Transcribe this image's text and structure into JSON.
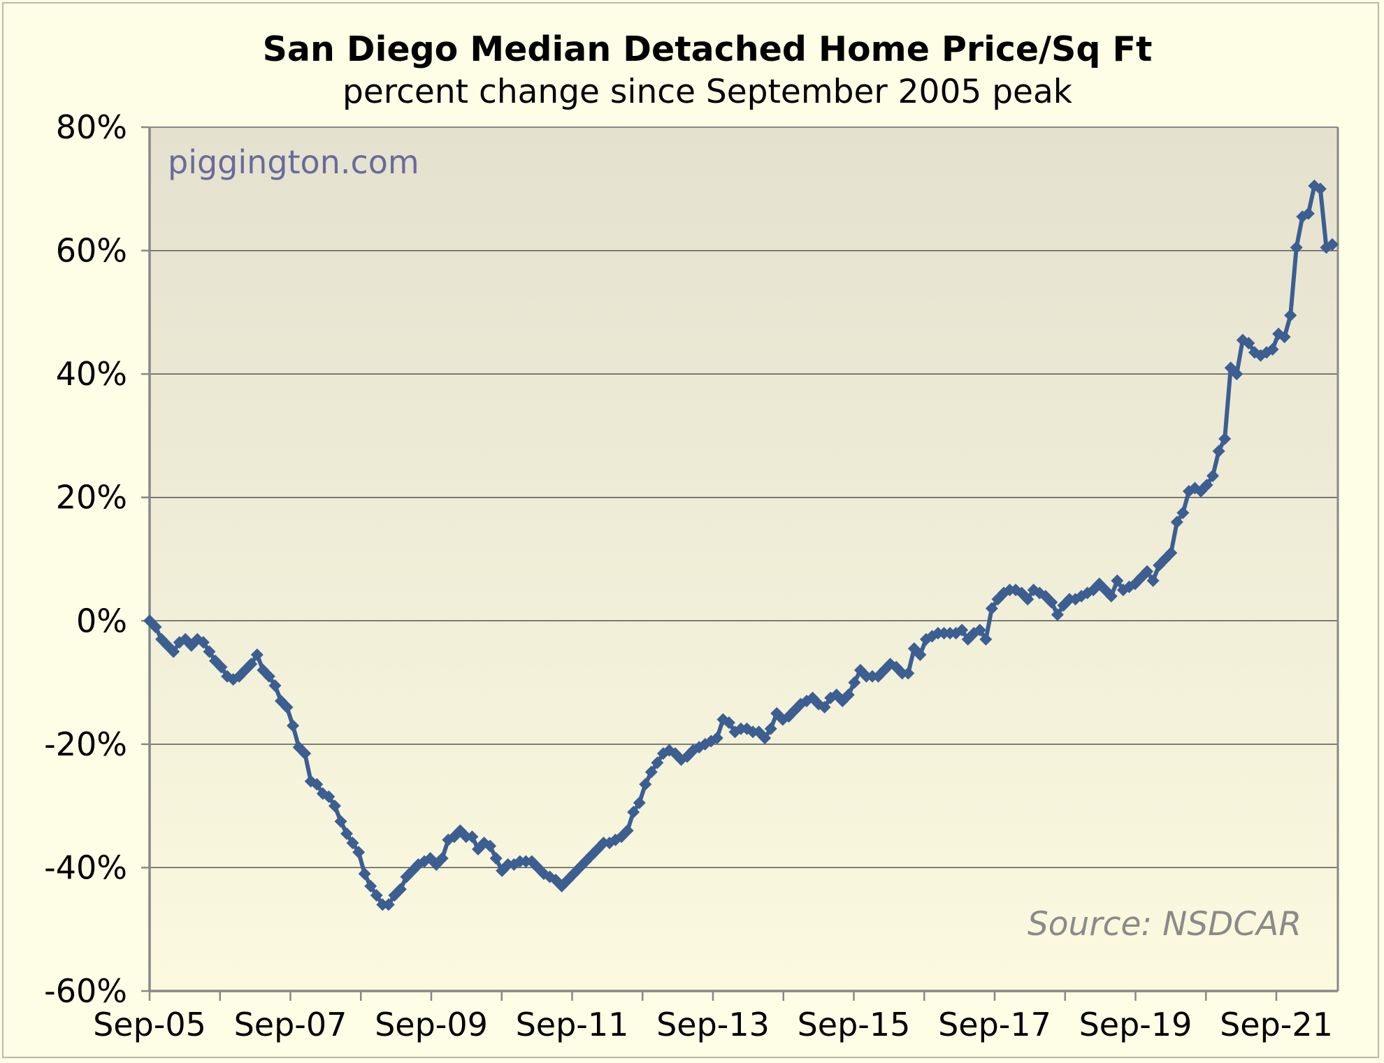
{
  "chart_data": {
    "type": "line",
    "title": "San Diego Median Detached Home Price/Sq Ft",
    "subtitle": "percent change since September 2005 peak",
    "watermark": "piggington.com",
    "source": "Source: NSDCAR",
    "ylim": [
      -60,
      80
    ],
    "yticks": [
      80,
      60,
      40,
      20,
      0,
      -20,
      -40,
      -60
    ],
    "ytick_labels": [
      "80%",
      "60%",
      "40%",
      "20%",
      "0%",
      "-20%",
      "-40%",
      "-60%"
    ],
    "xtick_labels": [
      "Sep-05",
      "Sep-07",
      "Sep-09",
      "Sep-11",
      "Sep-13",
      "Sep-15",
      "Sep-17",
      "Sep-19",
      "Sep-21"
    ],
    "x_first_label": "Sep-05",
    "x_last_point": "May-22",
    "grid": true,
    "colors": {
      "line": "#3c5e91",
      "plot_bg_top": "#e4e1cf",
      "plot_bg_bottom": "#fbfadf",
      "grid": "#555555",
      "axis": "#888888"
    },
    "series": [
      {
        "values": [
          0,
          -1,
          -3,
          -4,
          -5,
          -3.5,
          -3,
          -4,
          -3,
          -3.5,
          -5,
          -6.5,
          -7.5,
          -9,
          -9.5,
          -9,
          -8,
          -7,
          -5.5,
          -8,
          -9,
          -10.5,
          -13,
          -14,
          -17,
          -20.5,
          -21.5,
          -26,
          -26.5,
          -28,
          -28.5,
          -30,
          -32.5,
          -34.5,
          -36,
          -37.5,
          -41,
          -43,
          -44.5,
          -46,
          -46,
          -44.5,
          -43.5,
          -41.5,
          -40.5,
          -39.5,
          -39,
          -38.5,
          -39.5,
          -38.5,
          -35.5,
          -35,
          -34,
          -35,
          -35,
          -37,
          -36,
          -36.5,
          -38.5,
          -40.5,
          -39.5,
          -39.5,
          -39,
          -39,
          -39,
          -40,
          -41,
          -41.5,
          -42,
          -43,
          -42,
          -41,
          -40,
          -39,
          -38,
          -37,
          -36,
          -36,
          -35.5,
          -35,
          -34,
          -31,
          -29.5,
          -26.5,
          -24.5,
          -23,
          -21.5,
          -21,
          -21.5,
          -22.5,
          -22,
          -21,
          -20.5,
          -20,
          -19.5,
          -19,
          -16,
          -16.5,
          -18,
          -17.5,
          -17.5,
          -18,
          -18,
          -19,
          -17.5,
          -15,
          -16,
          -15.5,
          -14.5,
          -13.5,
          -13,
          -12.5,
          -13.5,
          -14,
          -12.5,
          -12,
          -13,
          -12,
          -10,
          -8,
          -9,
          -9,
          -9,
          -8,
          -7,
          -7.5,
          -8.5,
          -8.5,
          -4.5,
          -5.5,
          -3,
          -2.5,
          -2,
          -2,
          -2,
          -2,
          -1.5,
          -3,
          -2,
          -1.5,
          -3,
          2,
          3.5,
          4.5,
          5,
          5,
          4.5,
          3.5,
          5,
          4.5,
          4,
          3,
          1,
          2.5,
          3.5,
          3.5,
          4,
          4.5,
          5,
          6,
          5,
          4,
          6.5,
          5,
          5.5,
          6,
          7,
          8,
          6.5,
          9,
          10,
          11,
          16,
          17.5,
          21,
          21.5,
          21,
          22,
          23.5,
          27.5,
          29.5,
          41,
          40,
          45.5,
          45,
          43.5,
          43,
          43.5,
          44,
          46.5,
          46,
          49.5,
          60.5,
          65.5,
          66,
          70.5,
          70,
          60.5,
          61
        ]
      }
    ]
  }
}
